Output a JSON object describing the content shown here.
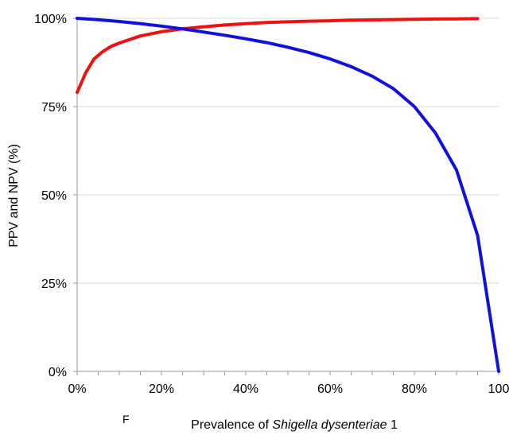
{
  "chart_data": {
    "type": "line",
    "title": "",
    "xlabel": "Prevalence of Shigella dysenteriae 1",
    "xlabel_parts": [
      {
        "text": "Prevalence of ",
        "italic": false
      },
      {
        "text": "Shigella dysenteriae",
        "italic": true
      },
      {
        "text": " 1",
        "italic": false
      }
    ],
    "ylabel": "PPV and NPV (%)",
    "stray_mark": "F",
    "xlim": [
      0,
      100
    ],
    "ylim": [
      0,
      100
    ],
    "x_ticks": [
      0,
      20,
      40,
      60,
      80,
      100
    ],
    "x_tick_labels": [
      "0%",
      "20%",
      "40%",
      "60%",
      "80%",
      "100"
    ],
    "y_ticks": [
      0,
      25,
      50,
      75,
      100
    ],
    "y_tick_labels": [
      "0%",
      "25%",
      "50%",
      "75%",
      "100%"
    ],
    "grid": true,
    "legend": "none",
    "series": [
      {
        "color": "#ee1111",
        "x": [
          0,
          2,
          4,
          6,
          8,
          10,
          15,
          20,
          25,
          30,
          35,
          40,
          45,
          50,
          55,
          60,
          65,
          70,
          75,
          80,
          85,
          90,
          95
        ],
        "y": [
          79,
          84.5,
          88.5,
          90.5,
          92,
          93,
          95,
          96.2,
          97,
          97.6,
          98.1,
          98.5,
          98.8,
          99.0,
          99.2,
          99.3,
          99.45,
          99.55,
          99.65,
          99.72,
          99.8,
          99.85,
          99.9
        ]
      },
      {
        "color": "#1111dd",
        "x": [
          0,
          5,
          10,
          15,
          20,
          25,
          30,
          35,
          40,
          45,
          50,
          55,
          60,
          65,
          70,
          75,
          80,
          85,
          90,
          95,
          100
        ],
        "y": [
          100,
          99.6,
          99.1,
          98.5,
          97.8,
          97.0,
          96.1,
          95.2,
          94.2,
          93.1,
          91.8,
          90.3,
          88.5,
          86.3,
          83.6,
          80.1,
          75.0,
          67.5,
          57.0,
          38.5,
          0
        ]
      }
    ]
  }
}
